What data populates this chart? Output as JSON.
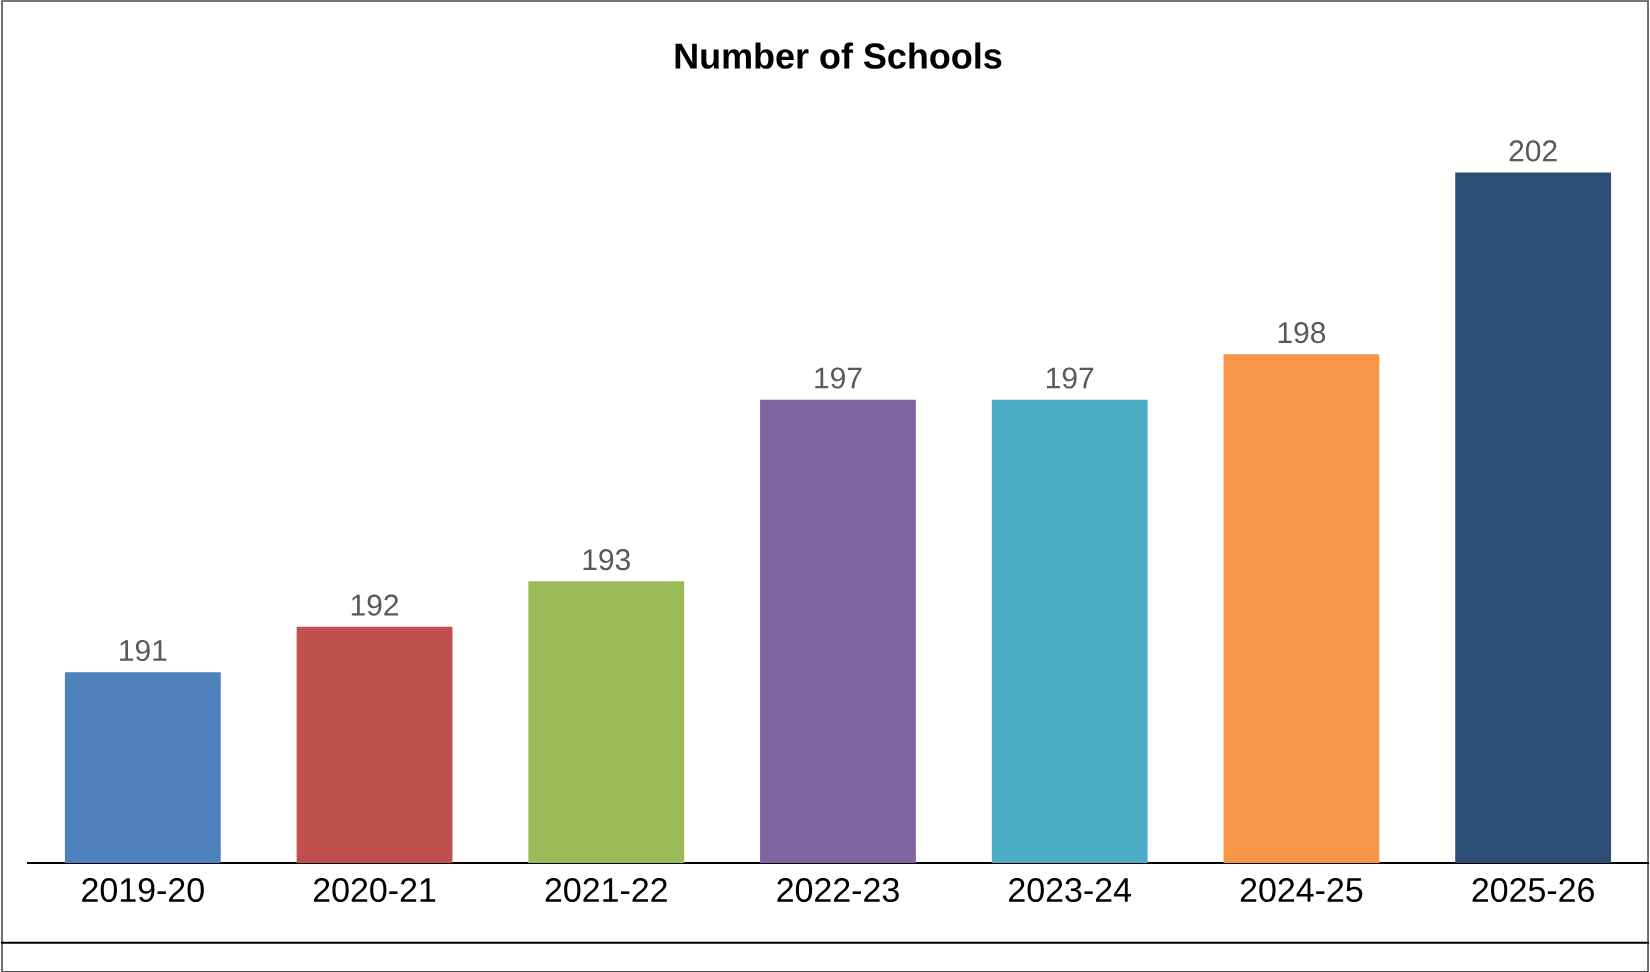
{
  "chart_data": {
    "type": "bar",
    "title": "Number of Schools",
    "categories": [
      "2019-20",
      "2020-21",
      "2021-22",
      "2022-23",
      "2023-24",
      "2024-25",
      "2025-26"
    ],
    "values": [
      191,
      192,
      193,
      197,
      197,
      198,
      202
    ],
    "colors": [
      "#4f81bd",
      "#c0504d",
      "#9bbb59",
      "#8064a2",
      "#4bacc6",
      "#f79646",
      "#2c4d75"
    ],
    "ylim": [
      186.8,
      205.8
    ],
    "data_labels": true
  }
}
